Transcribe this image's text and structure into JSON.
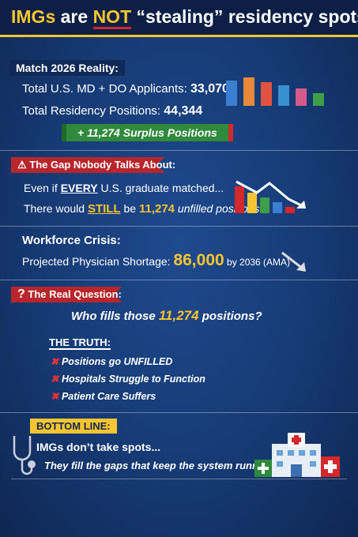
{
  "header": {
    "title_parts": [
      "IMGs",
      " are ",
      "NOT",
      " “stealing” residency spots!"
    ]
  },
  "sections": [
    {
      "heading": "Match 2026 Reality:",
      "lines": [
        [
          "Total U.S. MD + DO Applicants: ",
          "33,070"
        ],
        [
          "Total Residency Positions: ",
          "44,344"
        ]
      ],
      "banner": "+ 11,274 Surplus Positions"
    },
    {
      "heading": "The Gap Nobody Talks About:",
      "lines": [
        [
          "Even if ",
          "EVERY",
          " U.S. graduate matched..."
        ],
        [
          "There would ",
          "STILL",
          " be ",
          "11,274",
          " unfilled positions"
        ]
      ]
    },
    {
      "heading": "Workforce Crisis:",
      "lines": [
        [
          "Projected Physician Shortage: ",
          "86,000",
          " by 2036 (AMA)"
        ]
      ]
    },
    {
      "heading": "The Real Question:",
      "question": [
        "Who fills those ",
        "11,274",
        " positions?"
      ],
      "truth_heading": "THE TRUTH:",
      "truths": [
        "Positions go UNFILLED",
        "Hospitals Struggle to Function",
        "Patient Care Suffers"
      ]
    },
    {
      "heading": "BOTTOM LINE:",
      "lines": [
        "IMGs don’t take spots...",
        "They fill the gaps that keep the system running!"
      ]
    }
  ]
}
